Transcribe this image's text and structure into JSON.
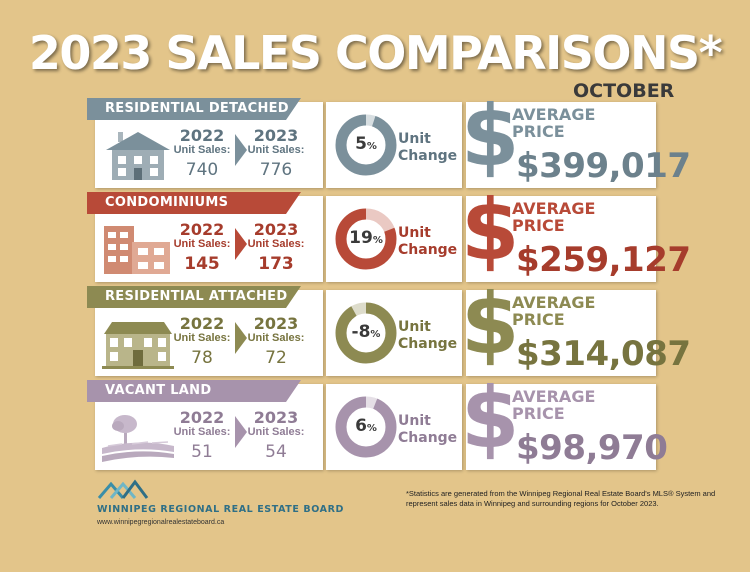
{
  "header": {
    "title": "2023 SALES COMPARISONS*",
    "month": "OCTOBER"
  },
  "colors": {
    "background": "#e3c58a",
    "residential_detached": "#7b909b",
    "condominiums": "#b84a38",
    "residential_attached": "#8d8a52",
    "vacant_land": "#a793ac"
  },
  "categories": [
    {
      "name": "RESIDENTIAL DETACHED",
      "year1": "2022",
      "year2": "2023",
      "unit_sales_label": "Unit Sales:",
      "sales1": "740",
      "sales2": "776",
      "change_pct": "5",
      "change_value": 5,
      "unit_change_line1": "Unit",
      "unit_change_line2": "Change",
      "dollar": "$",
      "avg_line1": "AVERAGE",
      "avg_line2": "PRICE",
      "avg_price": "$399,017",
      "icon": "house-icon"
    },
    {
      "name": "CONDOMINIUMS",
      "year1": "2022",
      "year2": "2023",
      "unit_sales_label": "Unit Sales:",
      "sales1": "145",
      "sales2": "173",
      "change_pct": "19",
      "change_value": 19,
      "unit_change_line1": "Unit",
      "unit_change_line2": "Change",
      "dollar": "$",
      "avg_line1": "AVERAGE",
      "avg_line2": "PRICE",
      "avg_price": "$259,127",
      "icon": "condo-building-icon"
    },
    {
      "name": "RESIDENTIAL ATTACHED",
      "year1": "2022",
      "year2": "2023",
      "unit_sales_label": "Unit Sales:",
      "sales1": "78",
      "sales2": "72",
      "change_pct": "-8",
      "change_value": -8,
      "unit_change_line1": "Unit",
      "unit_change_line2": "Change",
      "dollar": "$",
      "avg_line1": "AVERAGE",
      "avg_line2": "PRICE",
      "avg_price": "$314,087",
      "icon": "townhouse-icon"
    },
    {
      "name": "VACANT LAND",
      "year1": "2022",
      "year2": "2023",
      "unit_sales_label": "Unit Sales:",
      "sales1": "51",
      "sales2": "54",
      "change_pct": "6",
      "change_value": 6,
      "unit_change_line1": "Unit",
      "unit_change_line2": "Change",
      "dollar": "$",
      "avg_line1": "AVERAGE",
      "avg_line2": "PRICE",
      "avg_price": "$98,970",
      "icon": "land-tree-icon"
    }
  ],
  "percent_sign": "%",
  "footer": {
    "org": "WINNIPEG REGIONAL REAL ESTATE BOARD",
    "url": "www.winnipegregionalrealestateboard.ca",
    "note": "*Statistics are generated from the Winnipeg Regional Real Estate Board's MLS® System and represent sales data in Winnipeg and surrounding regions for October 2023."
  }
}
